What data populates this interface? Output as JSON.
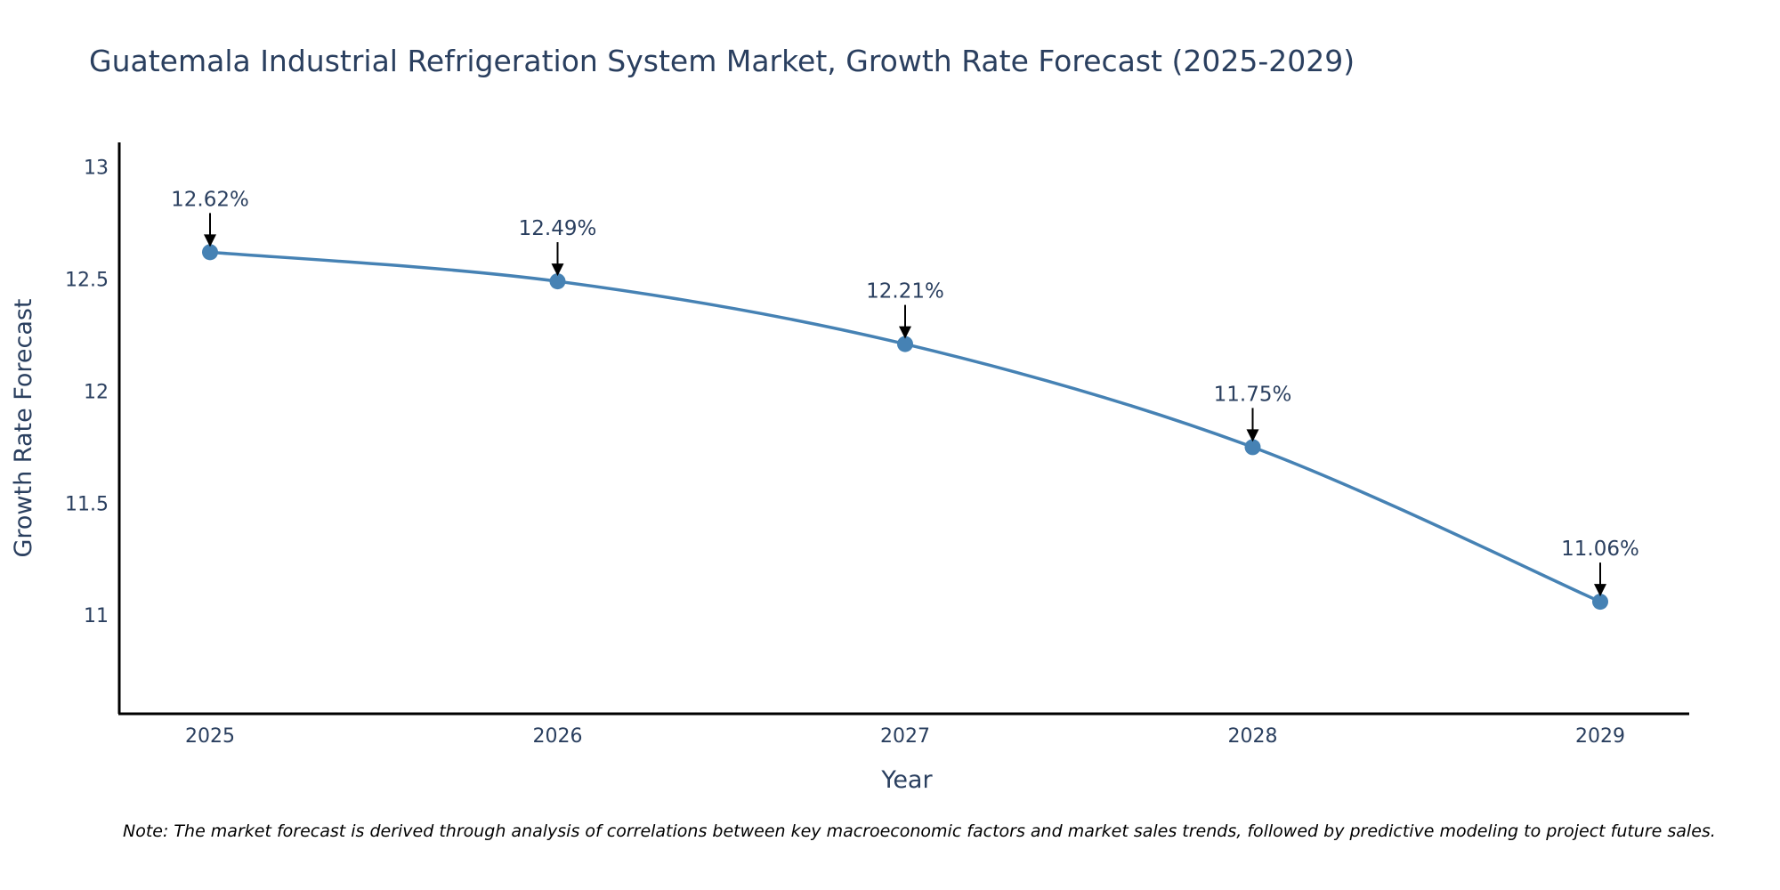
{
  "chart_data": {
    "type": "line",
    "title": "Guatemala Industrial Refrigeration System Market, Growth Rate Forecast (2025-2029)",
    "xlabel": "Year",
    "ylabel": "Growth Rate Forecast",
    "categories": [
      "2025",
      "2026",
      "2027",
      "2028",
      "2029"
    ],
    "values": [
      12.62,
      12.49,
      12.21,
      11.75,
      11.06
    ],
    "data_labels": [
      "12.62%",
      "12.49%",
      "12.21%",
      "11.75%",
      "11.06%"
    ],
    "ylim": [
      10.56,
      13.11
    ],
    "y_ticks": [
      11,
      11.5,
      12,
      12.5,
      13
    ],
    "y_tick_labels": [
      "11",
      "11.5",
      "12",
      "12.5",
      "13"
    ],
    "grid": false,
    "line_color": "#4682b4",
    "note": "Note: The market forecast is derived through analysis of correlations between key macroeconomic factors and market sales trends, followed by predictive modeling to project future sales."
  }
}
